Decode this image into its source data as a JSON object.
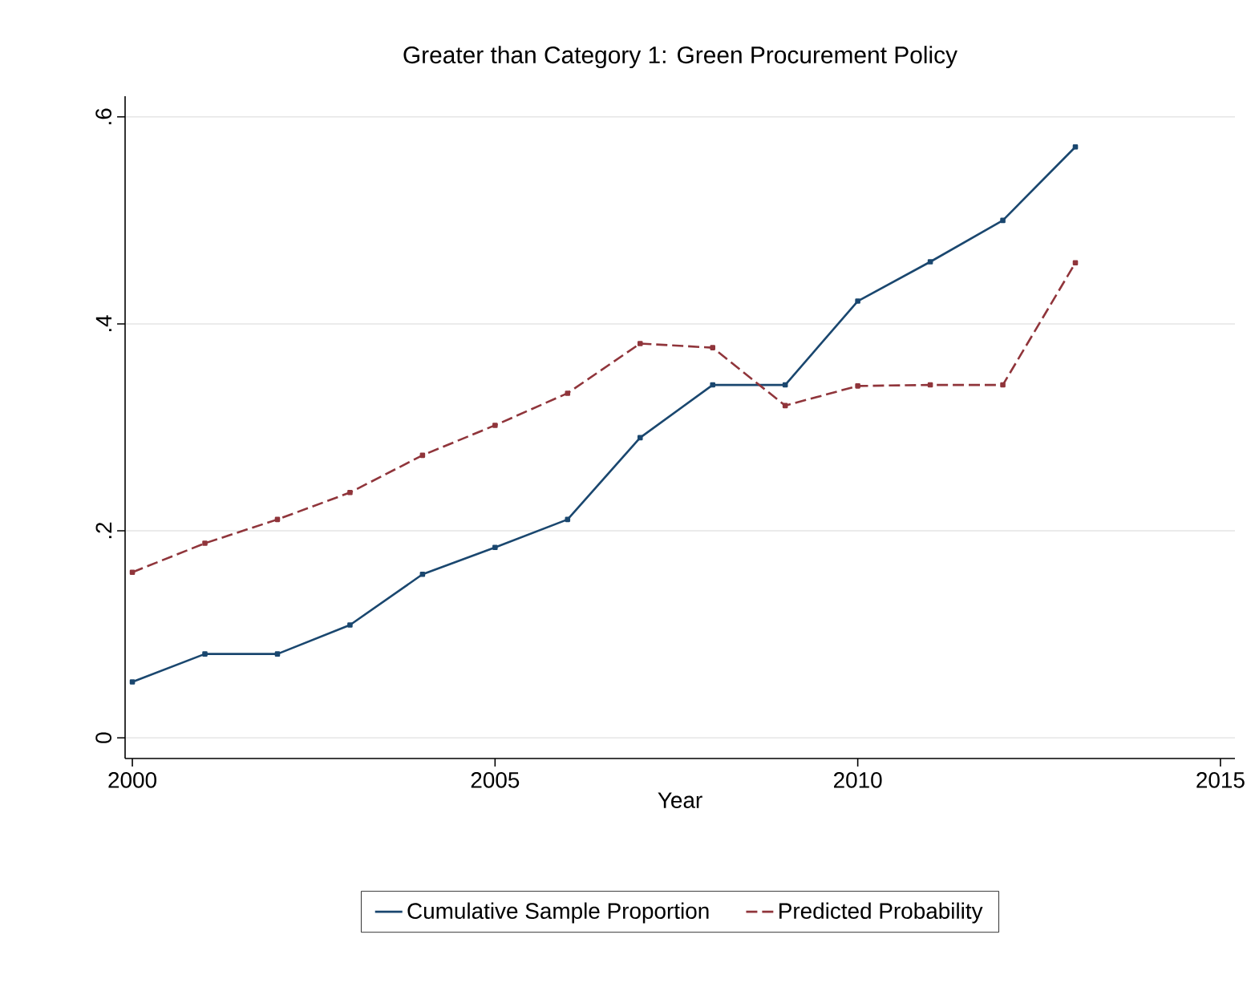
{
  "chart_data": {
    "type": "line",
    "title": "Greater than Category 1: Green Procurement Policy",
    "xlabel": "Year",
    "x": [
      2000,
      2001,
      2002,
      2003,
      2004,
      2005,
      2006,
      2007,
      2008,
      2009,
      2010,
      2011,
      2012,
      2013
    ],
    "series": [
      {
        "name": "Cumulative Sample Proportion",
        "color": "#1a476f",
        "line_style": "solid",
        "values": [
          0.054,
          0.081,
          0.081,
          0.109,
          0.158,
          0.184,
          0.211,
          0.29,
          0.341,
          0.341,
          0.422,
          0.46,
          0.5,
          0.571
        ]
      },
      {
        "name": "Predicted Probability",
        "color": "#90353b",
        "line_style": "dashed",
        "values": [
          0.16,
          0.188,
          0.211,
          0.237,
          0.273,
          0.302,
          0.333,
          0.381,
          0.377,
          0.321,
          0.34,
          0.341,
          0.341,
          0.459
        ]
      }
    ],
    "xlim": [
      1999.9,
      2015.2
    ],
    "ylim": [
      -0.02,
      0.62
    ],
    "xticks": [
      2000,
      2005,
      2010,
      2015
    ],
    "yticks": [
      {
        "value": 0,
        "label": "0"
      },
      {
        "value": 0.2,
        "label": ".2"
      },
      {
        "value": 0.4,
        "label": ".4"
      },
      {
        "value": 0.6,
        "label": ".6"
      }
    ],
    "grid": "y",
    "legend": "bottom",
    "marker": "square"
  }
}
